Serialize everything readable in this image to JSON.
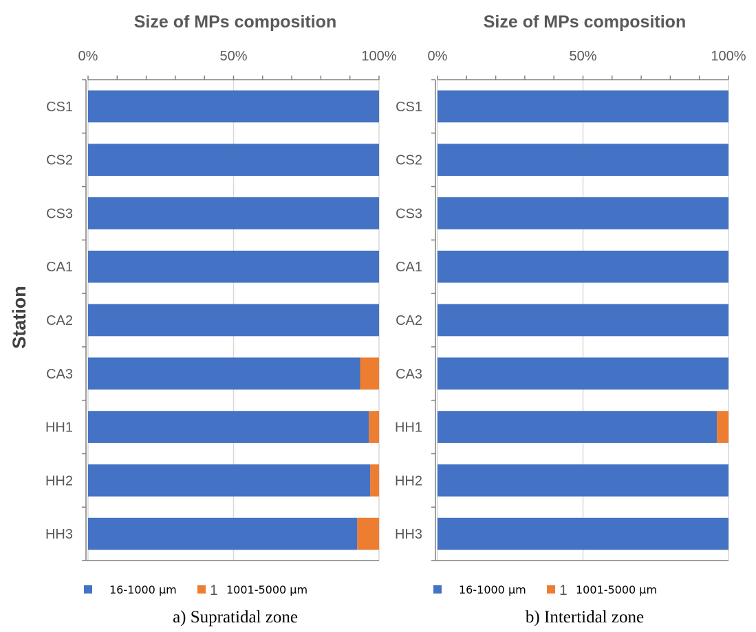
{
  "colors": {
    "series1": "#4472C4",
    "series2": "#ED7D31",
    "grid": "#D9D9D9",
    "axis": "#808080"
  },
  "y_axis_label": "Station",
  "panels": [
    {
      "title": "Size of MPs composition",
      "caption": "a) Supratidal zone",
      "legend_extra": "1",
      "chart_data": {
        "type": "bar",
        "orientation": "horizontal",
        "stacked": "percent",
        "title": "Size of MPs composition",
        "ylabel": "Station",
        "xlim": [
          0,
          100
        ],
        "x_ticks": [
          "0%",
          "50%",
          "100%"
        ],
        "grid": true,
        "legend_position": "bottom",
        "categories": [
          "CS1",
          "CS2",
          "CS3",
          "CA1",
          "CA2",
          "CA3",
          "HH1",
          "HH2",
          "HH3"
        ],
        "series": [
          {
            "name": "16-1000 µm",
            "values": [
              100,
              100,
              100,
              100,
              100,
              93.5,
              96.5,
              97,
              92.5
            ]
          },
          {
            "name": "1001-5000 µm",
            "values": [
              0,
              0,
              0,
              0,
              0,
              6.5,
              3.5,
              3,
              7.5
            ]
          }
        ]
      }
    },
    {
      "title": "Size of MPs composition",
      "caption": "b) Intertidal zone",
      "legend_extra": "1",
      "chart_data": {
        "type": "bar",
        "orientation": "horizontal",
        "stacked": "percent",
        "title": "Size of MPs composition",
        "xlim": [
          0,
          100
        ],
        "x_ticks": [
          "0%",
          "50%",
          "100%"
        ],
        "grid": true,
        "legend_position": "bottom",
        "categories": [
          "CS1",
          "CS2",
          "CS3",
          "CA1",
          "CA2",
          "CA3",
          "HH1",
          "HH2",
          "HH3"
        ],
        "series": [
          {
            "name": "16-1000 µm",
            "values": [
              100,
              100,
              100,
              100,
              100,
              100,
              96,
              100,
              100
            ]
          },
          {
            "name": "1001-5000 µm",
            "values": [
              0,
              0,
              0,
              0,
              0,
              0,
              4,
              0,
              0
            ]
          }
        ]
      }
    }
  ]
}
